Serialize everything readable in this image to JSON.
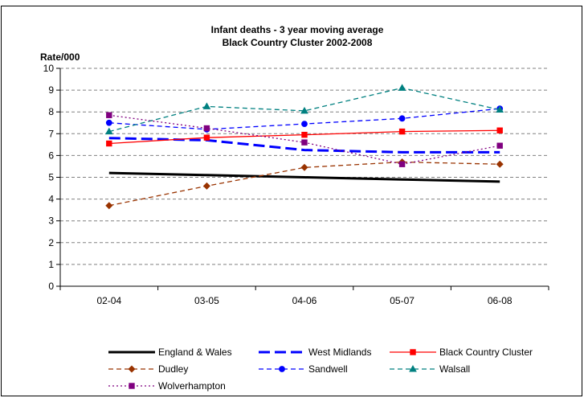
{
  "chart_data": {
    "type": "line",
    "title": "Infant deaths - 3 year moving average",
    "subtitle": "Black Country Cluster 2002-2008",
    "ylabel": "Rate/000",
    "xlabel": "",
    "categories": [
      "02-04",
      "03-05",
      "04-06",
      "05-07",
      "06-08"
    ],
    "ylim": [
      0,
      10
    ],
    "yticks": [
      0,
      1,
      2,
      3,
      4,
      5,
      6,
      7,
      8,
      9,
      10
    ],
    "grid": true,
    "legend_position": "bottom",
    "series": [
      {
        "name": "England & Wales",
        "values": [
          5.2,
          5.1,
          5.0,
          4.9,
          4.8
        ],
        "color": "#000000",
        "dash": "solid",
        "marker": "none",
        "weight": "heavy"
      },
      {
        "name": "West Midlands",
        "values": [
          6.8,
          6.7,
          6.25,
          6.15,
          6.15
        ],
        "color": "#0000ff",
        "dash": "long-dash",
        "marker": "none",
        "weight": "heavy"
      },
      {
        "name": "Black Country Cluster",
        "values": [
          6.55,
          6.82,
          6.95,
          7.1,
          7.15
        ],
        "color": "#ff0000",
        "dash": "solid",
        "marker": "square",
        "weight": "normal"
      },
      {
        "name": "Dudley",
        "values": [
          3.7,
          4.6,
          5.45,
          5.7,
          5.6
        ],
        "color": "#993300",
        "dash": "dash",
        "marker": "diamond",
        "weight": "normal"
      },
      {
        "name": "Sandwell",
        "values": [
          7.5,
          7.2,
          7.45,
          7.7,
          8.15
        ],
        "color": "#0000ff",
        "dash": "dash",
        "marker": "circle",
        "weight": "normal"
      },
      {
        "name": "Walsall",
        "values": [
          7.1,
          8.25,
          8.05,
          9.1,
          8.1
        ],
        "color": "#008080",
        "dash": "dash",
        "marker": "triangle",
        "weight": "normal"
      },
      {
        "name": "Wolverhampton",
        "values": [
          7.85,
          7.25,
          6.6,
          5.6,
          6.45
        ],
        "color": "#800080",
        "dash": "dot",
        "marker": "square",
        "weight": "normal"
      }
    ]
  }
}
